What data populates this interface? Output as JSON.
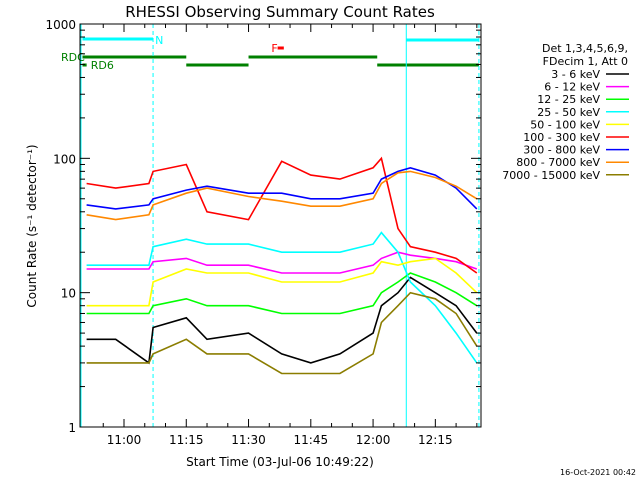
{
  "chart_data": {
    "type": "line",
    "title": "RHESSI Observing Summary Count Rates",
    "xlabel": "Start Time (03-Jul-06 10:49:22)",
    "ylabel": "Count Rate (s⁻¹ detector⁻¹)",
    "y_scale": "log",
    "ylim": [
      1,
      1000
    ],
    "x_ticks": [
      "11:00",
      "11:15",
      "11:30",
      "11:45",
      "12:00",
      "12:15"
    ],
    "x_tick_minutes": [
      660,
      675,
      690,
      705,
      720,
      735
    ],
    "xlim_minutes": [
      649.4,
      746
    ],
    "y_ticks": [
      "1",
      "10",
      "100",
      "1000"
    ],
    "y_tick_values": [
      1,
      10,
      100,
      1000
    ],
    "legend_header": [
      "Det 1,3,4,5,6,9,",
      "FDecim 1, Att 0"
    ],
    "legend_position": "right",
    "series": [
      {
        "name": "3 - 6 keV",
        "color": "#000000",
        "x": [
          651,
          658,
          666,
          667,
          675,
          680,
          690,
          698,
          705,
          712,
          720,
          722,
          726,
          729,
          735,
          740,
          745
        ],
        "values": [
          4.5,
          4.5,
          3.0,
          5.5,
          6.5,
          4.5,
          5.0,
          3.5,
          3.0,
          3.5,
          5.0,
          8.0,
          10,
          13,
          10,
          8,
          5
        ]
      },
      {
        "name": "6 - 12 keV",
        "color": "#ff00ff",
        "x": [
          651,
          658,
          666,
          667,
          675,
          680,
          690,
          698,
          705,
          712,
          720,
          722,
          726,
          729,
          735,
          740,
          745
        ],
        "values": [
          15,
          15,
          15,
          17,
          18,
          16,
          16,
          14,
          14,
          14,
          16,
          18,
          20,
          19,
          18,
          17,
          15
        ]
      },
      {
        "name": "12 - 25 keV",
        "color": "#00ff00",
        "x": [
          651,
          658,
          666,
          667,
          675,
          680,
          690,
          698,
          705,
          712,
          720,
          722,
          726,
          729,
          735,
          740,
          745
        ],
        "values": [
          7,
          7,
          7,
          8,
          9,
          8,
          8,
          7,
          7,
          7,
          8,
          10,
          12,
          14,
          12,
          10,
          8
        ]
      },
      {
        "name": "25 - 50 keV",
        "color": "#00ffff",
        "x": [
          651,
          658,
          666,
          667,
          675,
          680,
          690,
          698,
          705,
          712,
          720,
          722,
          726,
          729,
          735,
          740,
          745
        ],
        "values": [
          16,
          16,
          16,
          22,
          25,
          23,
          23,
          20,
          20,
          20,
          23,
          28,
          20,
          12,
          8,
          5,
          3
        ]
      },
      {
        "name": "50 - 100 keV",
        "color": "#ffff00",
        "x": [
          651,
          658,
          666,
          667,
          675,
          680,
          690,
          698,
          705,
          712,
          720,
          722,
          726,
          729,
          735,
          740,
          745
        ],
        "values": [
          8,
          8,
          8,
          12,
          15,
          14,
          14,
          12,
          12,
          12,
          14,
          17,
          16,
          17,
          18,
          14,
          10
        ]
      },
      {
        "name": "100 - 300 keV",
        "color": "#ff0000",
        "x": [
          651,
          658,
          666,
          667,
          675,
          680,
          690,
          698,
          705,
          712,
          720,
          722,
          726,
          729,
          735,
          740,
          745
        ],
        "values": [
          65,
          60,
          65,
          80,
          90,
          40,
          35,
          95,
          75,
          70,
          85,
          100,
          30,
          22,
          20,
          18,
          14
        ]
      },
      {
        "name": "300 - 800 keV",
        "color": "#0000ff",
        "x": [
          651,
          658,
          666,
          667,
          675,
          680,
          690,
          698,
          705,
          712,
          720,
          722,
          726,
          729,
          735,
          740,
          745
        ],
        "values": [
          45,
          42,
          45,
          50,
          58,
          62,
          55,
          55,
          50,
          50,
          55,
          70,
          80,
          85,
          75,
          60,
          42
        ]
      },
      {
        "name": "800 - 7000 keV",
        "color": "#ff8800",
        "x": [
          651,
          658,
          666,
          667,
          675,
          680,
          690,
          698,
          705,
          712,
          720,
          722,
          726,
          729,
          735,
          740,
          745
        ],
        "values": [
          38,
          35,
          38,
          45,
          55,
          60,
          52,
          48,
          44,
          44,
          50,
          65,
          78,
          80,
          72,
          62,
          50
        ]
      },
      {
        "name": "7000 - 15000 keV",
        "color": "#8b7d00",
        "x": [
          651,
          658,
          666,
          667,
          675,
          680,
          690,
          698,
          705,
          712,
          720,
          722,
          726,
          729,
          735,
          740,
          745
        ],
        "values": [
          3.0,
          3.0,
          3.0,
          3.5,
          4.5,
          3.5,
          3.5,
          2.5,
          2.5,
          2.5,
          3.5,
          6.0,
          8.0,
          10,
          9,
          7,
          4
        ]
      }
    ],
    "annotations": [
      {
        "text": "N",
        "color": "#00ffff"
      },
      {
        "text": "F",
        "color": "#ff0000"
      },
      {
        "text": "RDC",
        "color": "#008000"
      },
      {
        "text": "RD6",
        "color": "#008000"
      }
    ],
    "timestamp": "16-Oct-2021 00:42"
  }
}
